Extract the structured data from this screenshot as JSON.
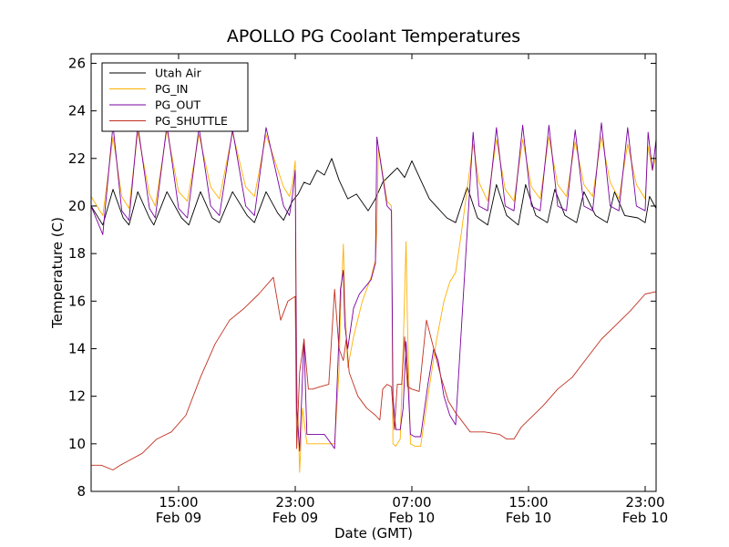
{
  "chart_data": {
    "type": "line",
    "title": "APOLLO PG Coolant Temperatures",
    "xlabel": "Date (GMT)",
    "ylabel": "Temperature (C)",
    "x_unit": "hours",
    "xlim": [
      9.0,
      47.75
    ],
    "ylim": [
      8,
      26.4
    ],
    "yticks": [
      8,
      10,
      12,
      14,
      16,
      18,
      20,
      22,
      24,
      26
    ],
    "xticks": [
      {
        "x": 15,
        "line1": "15:00",
        "line2": "Feb 09"
      },
      {
        "x": 23,
        "line1": "23:00",
        "line2": "Feb 09"
      },
      {
        "x": 31,
        "line1": "07:00",
        "line2": "Feb 10"
      },
      {
        "x": 39,
        "line1": "15:00",
        "line2": "Feb 10"
      },
      {
        "x": 47,
        "line1": "23:00",
        "line2": "Feb 10"
      }
    ],
    "grid": false,
    "legend_position": "top-left",
    "series": [
      {
        "name": "Utah Air",
        "color": "#000000",
        "x": [
          9.0,
          9.8,
          10.5,
          11.2,
          11.6,
          12.2,
          13.0,
          13.3,
          14.2,
          15.2,
          15.7,
          16.5,
          17.3,
          17.8,
          18.7,
          19.7,
          20.2,
          21.0,
          21.8,
          22.2,
          22.8,
          23.2,
          23.6,
          24.0,
          24.5,
          25.0,
          25.5,
          26.0,
          26.6,
          27.2,
          28.0,
          28.5,
          29.0,
          29.5,
          30.0,
          30.5,
          31.0,
          31.6,
          32.2,
          32.8,
          33.4,
          34.0,
          34.8,
          35.5,
          36.2,
          36.8,
          37.5,
          38.3,
          38.8,
          39.5,
          40.3,
          40.8,
          41.5,
          42.3,
          42.8,
          43.6,
          44.4,
          44.9,
          45.6,
          46.5,
          47.0,
          47.3,
          47.75
        ],
        "y": [
          20.0,
          19.2,
          20.7,
          19.5,
          19.2,
          20.6,
          19.5,
          19.2,
          20.6,
          19.5,
          19.2,
          20.6,
          19.5,
          19.3,
          20.6,
          19.6,
          19.3,
          20.6,
          19.7,
          19.4,
          20.2,
          20.5,
          21.0,
          20.9,
          21.5,
          21.3,
          22.0,
          21.1,
          20.3,
          20.5,
          19.8,
          20.3,
          21.0,
          21.3,
          21.6,
          21.2,
          21.9,
          21.1,
          20.3,
          19.9,
          19.5,
          19.3,
          20.8,
          19.5,
          19.2,
          20.9,
          19.6,
          19.2,
          20.9,
          19.6,
          19.3,
          20.7,
          19.6,
          19.3,
          20.6,
          19.6,
          19.3,
          20.6,
          19.6,
          19.5,
          19.3,
          20.4,
          19.9
        ]
      },
      {
        "name": "PG_IN",
        "color": "#ffb000",
        "x": [
          9.0,
          9.8,
          10.5,
          11.1,
          11.6,
          12.2,
          13.0,
          13.4,
          14.2,
          15.0,
          15.6,
          16.4,
          17.2,
          17.8,
          18.7,
          19.6,
          20.2,
          21.0,
          22.2,
          22.6,
          22.8,
          23.0,
          23.1,
          23.3,
          23.5,
          23.8,
          24.2,
          25.0,
          25.7,
          26.0,
          26.1,
          26.3,
          26.4,
          26.6,
          27.0,
          27.6,
          28.2,
          28.4,
          28.5,
          28.6,
          28.7,
          29.3,
          29.6,
          29.7,
          29.9,
          30.2,
          30.4,
          30.6,
          30.7,
          30.9,
          31.2,
          31.6,
          32.1,
          32.7,
          33.2,
          33.6,
          34.0,
          34.4,
          35.2,
          35.6,
          36.2,
          36.8,
          37.4,
          38.0,
          38.6,
          39.2,
          39.8,
          40.4,
          41.0,
          41.6,
          42.2,
          42.8,
          43.4,
          44.0,
          44.6,
          45.2,
          45.8,
          46.4,
          47.0,
          47.2,
          47.5,
          47.75
        ],
        "y": [
          20.4,
          19.6,
          22.9,
          20.4,
          19.9,
          23.1,
          20.5,
          20.0,
          23.2,
          20.6,
          20.2,
          23.0,
          20.8,
          20.3,
          23.1,
          20.8,
          20.4,
          23.0,
          20.8,
          20.4,
          20.9,
          21.9,
          13.0,
          8.8,
          11.5,
          10.0,
          10.0,
          10.0,
          10.0,
          13.0,
          15.5,
          18.4,
          16.0,
          13.2,
          14.5,
          16.0,
          17.0,
          17.5,
          17.7,
          19.0,
          22.5,
          20.2,
          20.0,
          10.0,
          9.9,
          10.2,
          14.0,
          18.5,
          15.0,
          10.0,
          9.9,
          9.9,
          12.0,
          14.4,
          16.0,
          16.8,
          17.2,
          18.9,
          22.6,
          21.0,
          20.2,
          22.8,
          20.7,
          20.2,
          22.8,
          20.8,
          20.3,
          22.9,
          20.9,
          20.4,
          22.7,
          20.9,
          20.4,
          22.9,
          21.0,
          20.3,
          22.6,
          20.9,
          20.3,
          22.5,
          21.5,
          22.1
        ]
      },
      {
        "name": "PG_OUT",
        "color": "#7a00a0",
        "x": [
          9.0,
          9.8,
          10.5,
          11.1,
          11.6,
          12.2,
          13.0,
          13.4,
          14.2,
          15.0,
          15.6,
          16.4,
          17.2,
          17.8,
          18.7,
          19.6,
          20.2,
          21.0,
          22.2,
          22.6,
          22.8,
          23.0,
          23.1,
          23.3,
          23.6,
          23.8,
          24.2,
          25.0,
          25.7,
          26.0,
          26.1,
          26.3,
          26.4,
          26.6,
          27.0,
          27.4,
          28.2,
          28.5,
          28.6,
          29.3,
          29.6,
          29.7,
          29.9,
          30.2,
          30.4,
          30.6,
          30.7,
          30.9,
          31.2,
          31.6,
          32.1,
          32.5,
          32.8,
          33.2,
          33.6,
          34.0,
          35.2,
          35.6,
          36.2,
          36.8,
          37.4,
          38.0,
          38.6,
          39.2,
          39.8,
          40.4,
          41.0,
          41.6,
          42.2,
          42.8,
          43.4,
          44.0,
          44.6,
          45.2,
          45.8,
          46.4,
          47.0,
          47.2,
          47.5,
          47.75
        ],
        "y": [
          20.0,
          18.8,
          23.4,
          19.8,
          19.4,
          23.4,
          19.9,
          19.5,
          23.4,
          19.9,
          19.5,
          23.3,
          20.0,
          19.6,
          23.2,
          20.0,
          19.6,
          23.3,
          20.0,
          19.6,
          20.4,
          21.5,
          11.5,
          9.7,
          14.4,
          10.4,
          10.4,
          10.4,
          9.8,
          14.5,
          16.5,
          17.3,
          15.0,
          14.0,
          15.7,
          16.3,
          16.9,
          17.6,
          22.9,
          20.0,
          19.8,
          12.0,
          10.6,
          10.6,
          11.5,
          14.3,
          13.0,
          10.4,
          10.3,
          10.3,
          12.5,
          14.0,
          13.5,
          12.0,
          11.2,
          10.8,
          23.1,
          20.0,
          19.8,
          23.3,
          20.0,
          19.8,
          23.4,
          20.0,
          19.8,
          23.4,
          20.0,
          19.8,
          23.2,
          20.0,
          19.8,
          23.5,
          20.0,
          19.8,
          23.3,
          20.0,
          19.8,
          23.1,
          21.5,
          22.8
        ]
      },
      {
        "name": "PG_SHUTTLE",
        "color": "#c03020",
        "x": [
          9.0,
          9.7,
          10.5,
          11.0,
          11.6,
          12.5,
          13.5,
          14.5,
          15.5,
          16.5,
          17.5,
          18.5,
          19.5,
          20.5,
          21.5,
          22.0,
          22.5,
          23.0,
          23.1,
          23.3,
          23.6,
          23.9,
          24.2,
          24.7,
          25.3,
          25.7,
          26.0,
          26.3,
          26.5,
          26.7,
          27.3,
          27.9,
          28.5,
          28.8,
          29.0,
          29.3,
          29.6,
          29.8,
          30.0,
          30.3,
          30.5,
          30.7,
          31.0,
          31.5,
          32.0,
          32.5,
          33.0,
          33.5,
          34.0,
          34.5,
          35.0,
          36.0,
          37.0,
          37.5,
          38.0,
          38.5,
          39.0,
          40.0,
          41.0,
          42.0,
          43.0,
          44.0,
          45.0,
          46.0,
          47.0,
          47.75
        ],
        "y": [
          9.1,
          9.1,
          8.9,
          9.1,
          9.3,
          9.6,
          10.2,
          10.5,
          11.2,
          12.8,
          14.2,
          15.2,
          15.7,
          16.3,
          17.0,
          15.2,
          16.0,
          16.2,
          9.8,
          13.0,
          14.4,
          12.3,
          12.3,
          12.4,
          12.5,
          16.5,
          14.0,
          13.5,
          14.4,
          13.0,
          12.0,
          11.5,
          11.2,
          11.0,
          12.3,
          12.5,
          12.4,
          10.6,
          12.5,
          12.5,
          14.5,
          12.4,
          12.3,
          12.2,
          15.2,
          14.0,
          12.8,
          11.8,
          11.3,
          10.9,
          10.5,
          10.5,
          10.4,
          10.2,
          10.2,
          10.7,
          11.0,
          11.6,
          12.3,
          12.8,
          13.6,
          14.4,
          15.0,
          15.6,
          16.3,
          16.4
        ]
      }
    ]
  }
}
